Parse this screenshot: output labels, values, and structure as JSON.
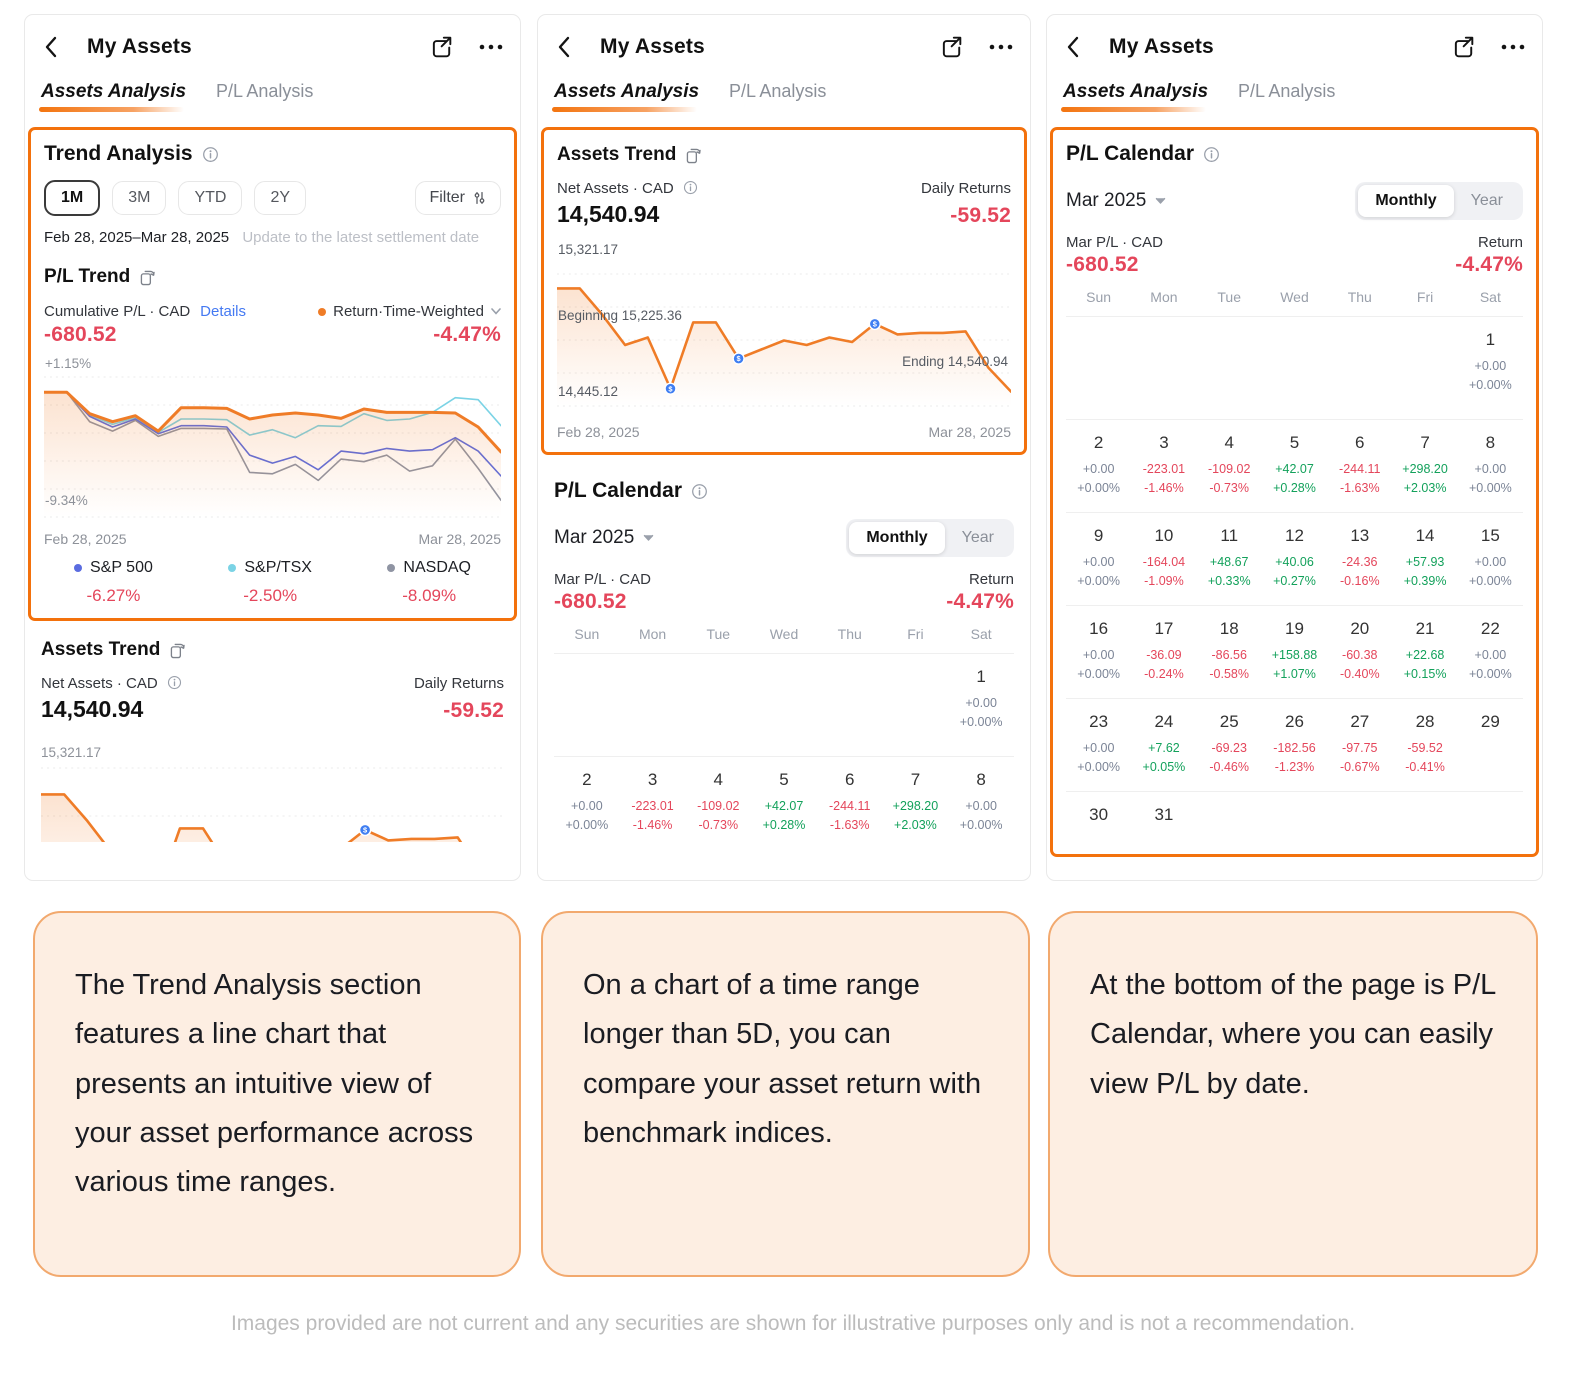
{
  "colors": {
    "accent_orange": "#f3710c",
    "negative_red": "#e4465b",
    "positive_green": "#13a15b",
    "neutral_slate": "#7b8496",
    "link_blue": "#4479f2"
  },
  "shared": {
    "title": "My Assets",
    "tab_active": "Assets Analysis",
    "tab_inactive": "P/L Analysis",
    "assets_trend": {
      "title": "Assets Trend",
      "net_assets_label": "Net Assets · CAD",
      "net_assets_value": "14,540.94",
      "daily_returns_label": "Daily Returns",
      "daily_returns_value": "-59.52"
    },
    "calendar_section": {
      "title": "P/L Calendar",
      "month": "Mar 2025",
      "toggle_monthly": "Monthly",
      "toggle_year": "Year",
      "pl_label": "Mar P/L · CAD",
      "pl_value": "-680.52",
      "return_label": "Return",
      "return_value": "-4.47%"
    }
  },
  "phone1": {
    "trend_analysis": {
      "title": "Trend Analysis",
      "ranges": [
        "1M",
        "3M",
        "YTD",
        "2Y"
      ],
      "active_range": "1M",
      "filter_label": "Filter",
      "date_range": "Feb 28, 2025–Mar 28, 2025",
      "update_note": "Update to the latest settlement date",
      "pl_trend_title": "P/L Trend",
      "cumulative_label": "Cumulative P/L · CAD",
      "details_link": "Details",
      "series_selector": "Return·Time-Weighted",
      "cumulative_value": "-680.52",
      "twr_value": "-4.47%"
    }
  },
  "chart_data": [
    {
      "name": "pl-trend-comparison",
      "type": "line",
      "title": "P/L Trend",
      "ymax": 1.15,
      "ymin": -9.34,
      "ylabel_top": "+1.15%",
      "ylabel_bottom": "-9.34%",
      "x_start": "Feb 28, 2025",
      "x_end": "Mar 28, 2025",
      "legend_position": "bottom",
      "series": [
        {
          "name": "Return·Time-Weighted",
          "color": "#ef7c27",
          "width": 3,
          "fill": true,
          "end_value": "-4.47%",
          "values": [
            0,
            0,
            -1.6,
            -2.2,
            -1.75,
            -2.9,
            -1.15,
            -1.15,
            -1.2,
            -2.0,
            -1.7,
            -1.55,
            -1.7,
            -1.95,
            -1.25,
            -1.5,
            -1.5,
            -1.5,
            -1.55,
            -2.6,
            -4.47
          ]
        },
        {
          "name": "S&P 500",
          "color": "#5a6ce0",
          "width": 1.6,
          "end_value": "-6.27%",
          "values": [
            0,
            0,
            -1.8,
            -2.6,
            -2.0,
            -3.1,
            -2.5,
            -2.5,
            -2.6,
            -4.7,
            -5.3,
            -4.8,
            -5.8,
            -4.4,
            -4.6,
            -4.2,
            -4.4,
            -4.3,
            -3.4,
            -4.4,
            -6.27
          ]
        },
        {
          "name": "S&P/TSX",
          "color": "#7bd3e5",
          "width": 1.6,
          "end_value": "-2.50%",
          "values": [
            0,
            0,
            -1.7,
            -2.4,
            -1.9,
            -3.0,
            -2.0,
            -2.0,
            -2.05,
            -3.2,
            -2.8,
            -3.4,
            -2.5,
            -2.55,
            -1.6,
            -2.1,
            -2.0,
            -1.5,
            -0.4,
            -0.55,
            -2.5
          ]
        },
        {
          "name": "NASDAQ",
          "color": "#8f94a3",
          "width": 1.6,
          "end_value": "-8.09%",
          "values": [
            0,
            0,
            -2.2,
            -2.9,
            -2.1,
            -3.3,
            -2.7,
            -2.7,
            -2.75,
            -6.0,
            -6.1,
            -5.4,
            -6.6,
            -5.0,
            -5.2,
            -4.7,
            -5.9,
            -5.5,
            -3.5,
            -5.7,
            -8.09
          ]
        }
      ]
    },
    {
      "name": "assets-trend",
      "type": "area",
      "ymax": 15321.17,
      "ymin": 14445.12,
      "ylabel_top": "15,321.17",
      "ylabel_bottom": "14,445.12",
      "beginning_label": "Beginning 15,225.36",
      "ending_label": "Ending 14,540.94",
      "x_start": "Feb 28, 2025",
      "x_end": "Mar 28, 2025",
      "series": [
        {
          "name": "Net Assets",
          "color": "#ef7c27",
          "width": 2.6,
          "fill": true,
          "values": [
            15225.36,
            15225.36,
            15050,
            14850,
            14900,
            14560,
            15000,
            15000,
            14760,
            14820,
            14880,
            14850,
            14900,
            14870,
            14990,
            14920,
            14930,
            14930,
            14940,
            14700,
            14540.94
          ],
          "marker_indices": [
            5,
            8,
            14
          ]
        }
      ]
    },
    {
      "name": "pl-calendar-march-2025",
      "type": "table",
      "month": "Mar 2025",
      "weekdays": [
        "Sun",
        "Mon",
        "Tue",
        "Wed",
        "Thu",
        "Fri",
        "Sat"
      ],
      "rows": [
        [
          null,
          null,
          null,
          null,
          null,
          null,
          {
            "day": "1",
            "pl": "+0.00",
            "pct": "+0.00%",
            "tone": "zero"
          }
        ],
        [
          {
            "day": "2",
            "pl": "+0.00",
            "pct": "+0.00%",
            "tone": "zero"
          },
          {
            "day": "3",
            "pl": "-223.01",
            "pct": "-1.46%",
            "tone": "neg"
          },
          {
            "day": "4",
            "pl": "-109.02",
            "pct": "-0.73%",
            "tone": "neg"
          },
          {
            "day": "5",
            "pl": "+42.07",
            "pct": "+0.28%",
            "tone": "pos"
          },
          {
            "day": "6",
            "pl": "-244.11",
            "pct": "-1.63%",
            "tone": "neg"
          },
          {
            "day": "7",
            "pl": "+298.20",
            "pct": "+2.03%",
            "tone": "pos"
          },
          {
            "day": "8",
            "pl": "+0.00",
            "pct": "+0.00%",
            "tone": "zero"
          }
        ],
        [
          {
            "day": "9",
            "pl": "+0.00",
            "pct": "+0.00%",
            "tone": "zero"
          },
          {
            "day": "10",
            "pl": "-164.04",
            "pct": "-1.09%",
            "tone": "neg"
          },
          {
            "day": "11",
            "pl": "+48.67",
            "pct": "+0.33%",
            "tone": "pos"
          },
          {
            "day": "12",
            "pl": "+40.06",
            "pct": "+0.27%",
            "tone": "pos"
          },
          {
            "day": "13",
            "pl": "-24.36",
            "pct": "-0.16%",
            "tone": "neg"
          },
          {
            "day": "14",
            "pl": "+57.93",
            "pct": "+0.39%",
            "tone": "pos"
          },
          {
            "day": "15",
            "pl": "+0.00",
            "pct": "+0.00%",
            "tone": "zero"
          }
        ],
        [
          {
            "day": "16",
            "pl": "+0.00",
            "pct": "+0.00%",
            "tone": "zero"
          },
          {
            "day": "17",
            "pl": "-36.09",
            "pct": "-0.24%",
            "tone": "neg"
          },
          {
            "day": "18",
            "pl": "-86.56",
            "pct": "-0.58%",
            "tone": "neg"
          },
          {
            "day": "19",
            "pl": "+158.88",
            "pct": "+1.07%",
            "tone": "pos"
          },
          {
            "day": "20",
            "pl": "-60.38",
            "pct": "-0.40%",
            "tone": "neg"
          },
          {
            "day": "21",
            "pl": "+22.68",
            "pct": "+0.15%",
            "tone": "pos"
          },
          {
            "day": "22",
            "pl": "+0.00",
            "pct": "+0.00%",
            "tone": "zero"
          }
        ],
        [
          {
            "day": "23",
            "pl": "+0.00",
            "pct": "+0.00%",
            "tone": "zero"
          },
          {
            "day": "24",
            "pl": "+7.62",
            "pct": "+0.05%",
            "tone": "pos"
          },
          {
            "day": "25",
            "pl": "-69.23",
            "pct": "-0.46%",
            "tone": "neg"
          },
          {
            "day": "26",
            "pl": "-182.56",
            "pct": "-1.23%",
            "tone": "neg"
          },
          {
            "day": "27",
            "pl": "-97.75",
            "pct": "-0.67%",
            "tone": "neg"
          },
          {
            "day": "28",
            "pl": "-59.52",
            "pct": "-0.41%",
            "tone": "neg"
          },
          {
            "day": "29"
          }
        ],
        [
          {
            "day": "30"
          },
          {
            "day": "31"
          },
          null,
          null,
          null,
          null,
          null
        ]
      ]
    }
  ],
  "captions": [
    "The Trend Analysis section features a line chart that presents an intuitive view of your asset performance across various time ranges.",
    "On a chart of a time range longer than 5D, you can compare your asset return with benchmark indices.",
    "At the bottom of the page is P/L Calendar, where you can easily view P/L by date."
  ],
  "disclaimer": "Images provided are not current and any securities are shown for illustrative purposes only and is not a recommendation."
}
